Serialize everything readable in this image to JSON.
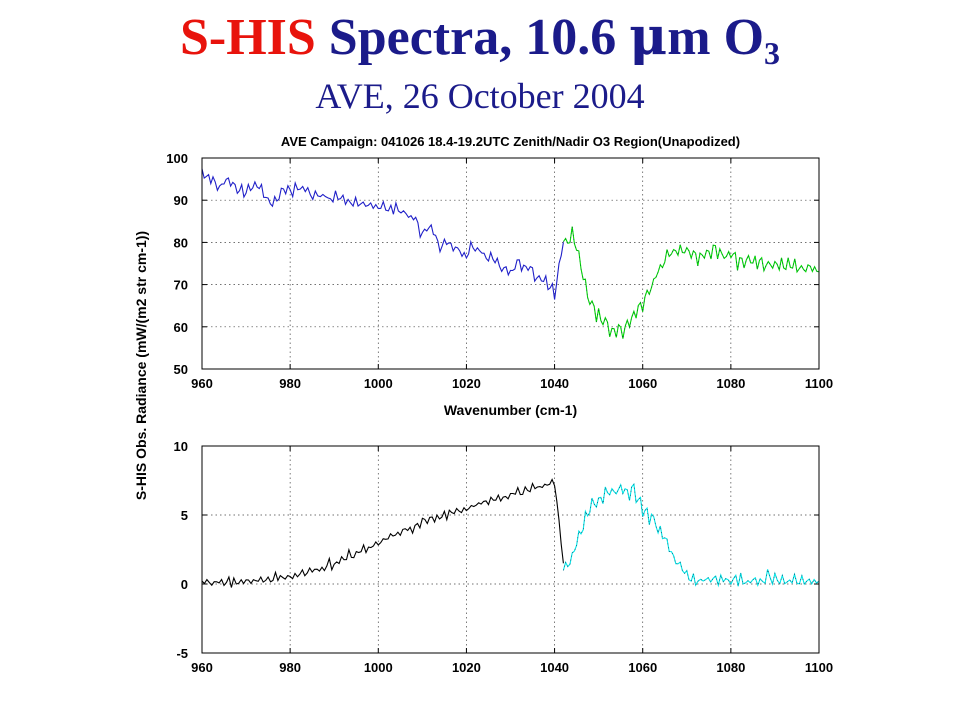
{
  "slide": {
    "title_part1": "S-HIS",
    "title_part2": "Spectra, 10.6",
    "title_mu": "μ",
    "title_part3": "m O",
    "title_sub": "3",
    "subtitle": "AVE, 26 October 2004",
    "colors": {
      "title_part1": "#e8130c",
      "title_rest": "#1b1b8a",
      "subtitle": "#1b1b8a"
    }
  },
  "chart_data": [
    {
      "type": "line",
      "title": "AVE Campaign: 041026  18.4-19.2UTC Zenith/Nadir O3 Region(Unapodized)",
      "xlabel": "Wavenumber (cm-1)",
      "ylabel": "S-HIS Obs. Radiance (mW/(m2 str cm-1))",
      "xlim": [
        960,
        1100
      ],
      "ylim": [
        50,
        100
      ],
      "xticks": [
        "960",
        "980",
        "1000",
        "1020",
        "1040",
        "1060",
        "1080",
        "1100"
      ],
      "yticks": [
        "50",
        "60",
        "70",
        "80",
        "90",
        "100"
      ],
      "grid": true,
      "series": [
        {
          "color": "#2020c8",
          "x": [
            960,
            962,
            964,
            966,
            968,
            970,
            972,
            974,
            976,
            978,
            980,
            984,
            988,
            992,
            996,
            1000,
            1004,
            1008,
            1010,
            1012,
            1014,
            1016,
            1018,
            1020,
            1022,
            1024,
            1026,
            1028,
            1030,
            1032,
            1034,
            1036,
            1038,
            1040,
            1042
          ],
          "y": [
            96,
            95.5,
            93,
            95,
            93,
            92,
            94,
            91,
            89,
            92,
            93,
            92,
            91,
            90,
            89,
            88,
            88,
            86,
            82,
            84,
            79,
            80,
            78,
            77,
            79,
            77,
            76,
            74,
            73,
            75,
            74,
            72,
            71,
            68,
            80
          ]
        },
        {
          "color": "#00dc00",
          "x": [
            1042,
            1044,
            1046,
            1048,
            1050,
            1052,
            1054,
            1056,
            1058,
            1060,
            1062,
            1064,
            1066,
            1068,
            1070,
            1072,
            1074,
            1076,
            1078,
            1080,
            1082,
            1084,
            1086,
            1088,
            1090,
            1092,
            1094,
            1096,
            1098,
            1100
          ],
          "y": [
            80,
            82,
            75,
            66,
            62,
            60,
            59,
            60,
            62,
            66,
            70,
            74,
            77,
            78,
            78,
            77,
            77,
            78,
            77,
            77,
            76,
            76,
            75,
            75,
            75,
            74,
            74,
            74,
            74,
            73
          ]
        }
      ]
    },
    {
      "type": "line",
      "title": "",
      "xlabel": "",
      "ylabel": "",
      "xlim": [
        960,
        1100
      ],
      "ylim": [
        -5,
        10
      ],
      "xticks": [
        "960",
        "980",
        "1000",
        "1020",
        "1040",
        "1060",
        "1080",
        "1100"
      ],
      "yticks": [
        "-5",
        "0",
        "5",
        "10"
      ],
      "grid": true,
      "series": [
        {
          "color": "#000000",
          "x": [
            960,
            965,
            970,
            975,
            980,
            985,
            990,
            995,
            1000,
            1005,
            1010,
            1015,
            1020,
            1025,
            1030,
            1035,
            1040,
            1042
          ],
          "y": [
            0.1,
            0.15,
            0.2,
            0.3,
            0.5,
            0.9,
            1.5,
            2.2,
            3.0,
            3.8,
            4.4,
            5.0,
            5.5,
            6.0,
            6.4,
            6.9,
            7.4,
            1.5
          ]
        },
        {
          "color": "#00e8e8",
          "x": [
            1042,
            1044,
            1046,
            1048,
            1050,
            1052,
            1054,
            1056,
            1058,
            1060,
            1062,
            1064,
            1066,
            1068,
            1070,
            1072,
            1076,
            1080,
            1085,
            1090,
            1095,
            1100
          ],
          "y": [
            1.0,
            2.0,
            4.0,
            5.5,
            6.2,
            6.5,
            6.8,
            7.0,
            6.6,
            5.8,
            4.8,
            3.8,
            2.6,
            1.4,
            0.6,
            0.3,
            0.2,
            0.2,
            0.2,
            0.25,
            0.2,
            0.2
          ]
        }
      ]
    }
  ]
}
